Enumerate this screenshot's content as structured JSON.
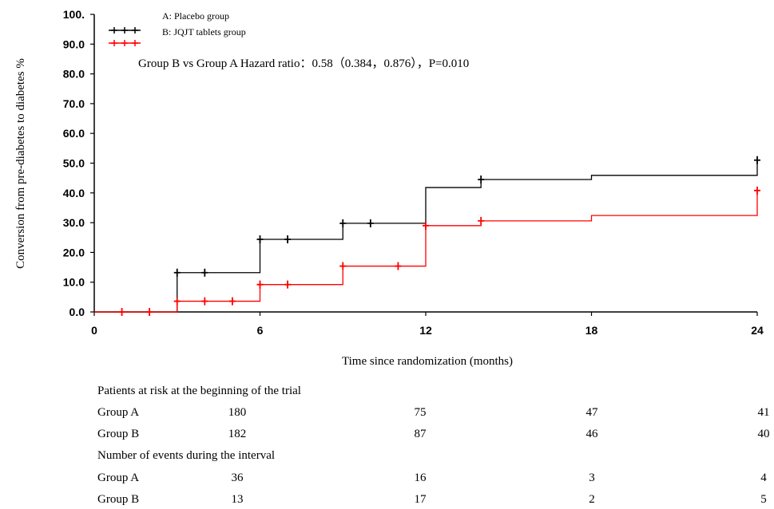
{
  "chart_data": {
    "type": "line",
    "title": "",
    "xlabel": "Time since randomization (months)",
    "ylabel": "Conversion from pre-diabetes to diabetes %",
    "xlim": [
      0,
      24
    ],
    "ylim": [
      0,
      100
    ],
    "x_ticks": [
      "0",
      "6",
      "12",
      "18",
      "24"
    ],
    "y_ticks": [
      "100.",
      "90.0",
      "80.0",
      "70.0",
      "60.0",
      "50.0",
      "40.0",
      "30.0",
      "20.0",
      "10.0",
      "0.0"
    ],
    "annotation": "Group B vs Group A Hazard ratio：0.58（0.384，0.876），P=0.010",
    "legend_position": "top-left",
    "series": [
      {
        "name": "A: Placebo group",
        "color": "#000000",
        "steps": [
          [
            0,
            0
          ],
          [
            3,
            13.2
          ],
          [
            6,
            24.4
          ],
          [
            9,
            29.8
          ],
          [
            12,
            41.8
          ],
          [
            14,
            44.5
          ],
          [
            18,
            45.9
          ],
          [
            24,
            51.0
          ]
        ],
        "censored": [
          [
            3,
            13.2
          ],
          [
            4,
            13.2
          ],
          [
            6,
            24.4
          ],
          [
            7,
            24.4
          ],
          [
            9,
            29.8
          ],
          [
            10,
            29.8
          ],
          [
            14,
            44.5
          ],
          [
            24,
            51.0
          ]
        ]
      },
      {
        "name": "B: JQJT tablets group",
        "color": "#ff0000",
        "steps": [
          [
            0,
            0
          ],
          [
            3,
            3.6
          ],
          [
            6,
            9.2
          ],
          [
            9,
            15.4
          ],
          [
            12,
            29.0
          ],
          [
            14,
            30.6
          ],
          [
            18,
            32.4
          ],
          [
            24,
            40.8
          ]
        ],
        "censored": [
          [
            1,
            0
          ],
          [
            2,
            0
          ],
          [
            3,
            3.6
          ],
          [
            4,
            3.6
          ],
          [
            5,
            3.6
          ],
          [
            6,
            9.2
          ],
          [
            7,
            9.2
          ],
          [
            9,
            15.4
          ],
          [
            11,
            15.4
          ],
          [
            12,
            29.0
          ],
          [
            14,
            30.6
          ],
          [
            24,
            40.8
          ]
        ]
      }
    ]
  },
  "risk_table": {
    "at_risk_title": "Patients at risk at the beginning of the trial",
    "events_title": "Number of events during the interval",
    "at_risk": [
      {
        "label": "Group A",
        "values": [
          "180",
          "75",
          "47",
          "41"
        ]
      },
      {
        "label": "Group B",
        "values": [
          "182",
          "87",
          "46",
          "40"
        ]
      }
    ],
    "events": [
      {
        "label": "Group A",
        "values": [
          "36",
          "16",
          "3",
          "4"
        ]
      },
      {
        "label": "Group B",
        "values": [
          "13",
          "17",
          "2",
          "5"
        ]
      }
    ]
  }
}
